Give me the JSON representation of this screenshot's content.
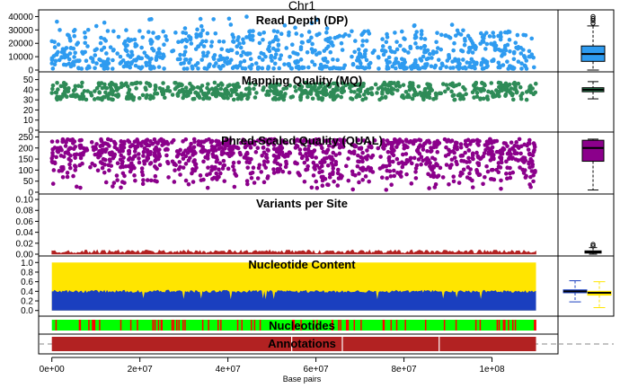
{
  "title": "Chr1",
  "xlabel": "Base pairs",
  "x_ticks": [
    {
      "value": 0,
      "label": "0e+00"
    },
    {
      "value": 20000000,
      "label": "2e+07"
    },
    {
      "value": 40000000,
      "label": "4e+07"
    },
    {
      "value": 60000000,
      "label": "6e+07"
    },
    {
      "value": 80000000,
      "label": "8e+07"
    },
    {
      "value": 100000000,
      "label": "1e+08"
    }
  ],
  "xlim": [
    -3000000,
    115000000
  ],
  "chart_data": [
    {
      "type": "scatter",
      "title": "Read Depth (DP)",
      "color": "#2E9BF0",
      "ylim": [
        0,
        43000
      ],
      "y_ticks": [
        0,
        10000,
        20000,
        30000,
        40000
      ],
      "x_range": [
        0,
        110000000
      ],
      "y_typical": [
        1000,
        30000
      ],
      "y_max": 40000,
      "boxplot": {
        "min": 0,
        "q1": 6500,
        "median": 12000,
        "q3": 18000,
        "max": 33000,
        "outliers": [
          35000,
          37000,
          38500,
          40000
        ],
        "fill": "#2E9BF0"
      }
    },
    {
      "type": "scatter",
      "title": "Mapping Quality (MQ)",
      "color": "#2E8B57",
      "ylim": [
        0,
        55
      ],
      "y_ticks": [
        0,
        10,
        20,
        30,
        40,
        50
      ],
      "x_range": [
        0,
        110000000
      ],
      "y_typical": [
        30,
        47
      ],
      "boxplot": {
        "min": 31,
        "q1": 38,
        "median": 40,
        "q3": 42,
        "max": 48,
        "outliers": [],
        "fill": "#2E8B57"
      }
    },
    {
      "type": "scatter",
      "title": "Phred-Scaled Quality (QUAL)",
      "color": "#8B008B",
      "ylim": [
        0,
        260
      ],
      "y_ticks": [
        0,
        50,
        100,
        150,
        200,
        250
      ],
      "x_range": [
        0,
        110000000
      ],
      "y_typical": [
        10,
        240
      ],
      "boxplot": {
        "min": 10,
        "q1": 140,
        "median": 200,
        "q3": 235,
        "max": 240,
        "outliers": [],
        "fill": "#8B008B"
      }
    },
    {
      "type": "bar",
      "title": "Variants per Site",
      "color": "#B22222",
      "ylim": [
        0,
        0.105
      ],
      "y_ticks": [
        0.0,
        0.02,
        0.04,
        0.06,
        0.08,
        0.1
      ],
      "y_tick_labels": [
        "0.00",
        "0.02",
        "0.04",
        "0.06",
        "0.08",
        "0.10"
      ],
      "x_range": [
        0,
        110000000
      ],
      "y_typical": [
        0.001,
        0.008
      ],
      "boxplot": {
        "min": 0.0,
        "q1": 0.002,
        "median": 0.004,
        "q3": 0.006,
        "max": 0.012,
        "outliers": [
          0.015,
          0.018
        ],
        "fill": "#ffffff"
      }
    },
    {
      "type": "area",
      "title": "Nucleotide Content",
      "ylim": [
        -0.08,
        1.08
      ],
      "y_ticks": [
        0.0,
        0.2,
        0.4,
        0.6,
        0.8,
        1.0
      ],
      "y_tick_labels": [
        "0.0",
        "0.2",
        "0.4",
        "0.6",
        "0.8",
        "1.0"
      ],
      "x_range": [
        0,
        110000000
      ],
      "series": [
        {
          "color": "#1A3FBF",
          "typical": 0.4,
          "boxplot": {
            "min": 0.18,
            "q1": 0.37,
            "median": 0.4,
            "q3": 0.43,
            "max": 0.62
          }
        },
        {
          "color": "#FFE500",
          "typical": 0.6,
          "boxplot": {
            "min": 0.06,
            "q1": 0.32,
            "median": 0.37,
            "q3": 0.4,
            "max": 0.6
          }
        }
      ]
    },
    {
      "type": "heatmap",
      "title": "Nucleotides",
      "colors": {
        "called": "#00FF00",
        "gap": "#FF0000"
      },
      "x_range": [
        0,
        110000000
      ]
    },
    {
      "type": "bar",
      "title": "Annotations",
      "color": "#B22222",
      "x_range": [
        0,
        110000000
      ],
      "breaks": [
        54500000,
        66000000,
        88000000
      ]
    }
  ]
}
